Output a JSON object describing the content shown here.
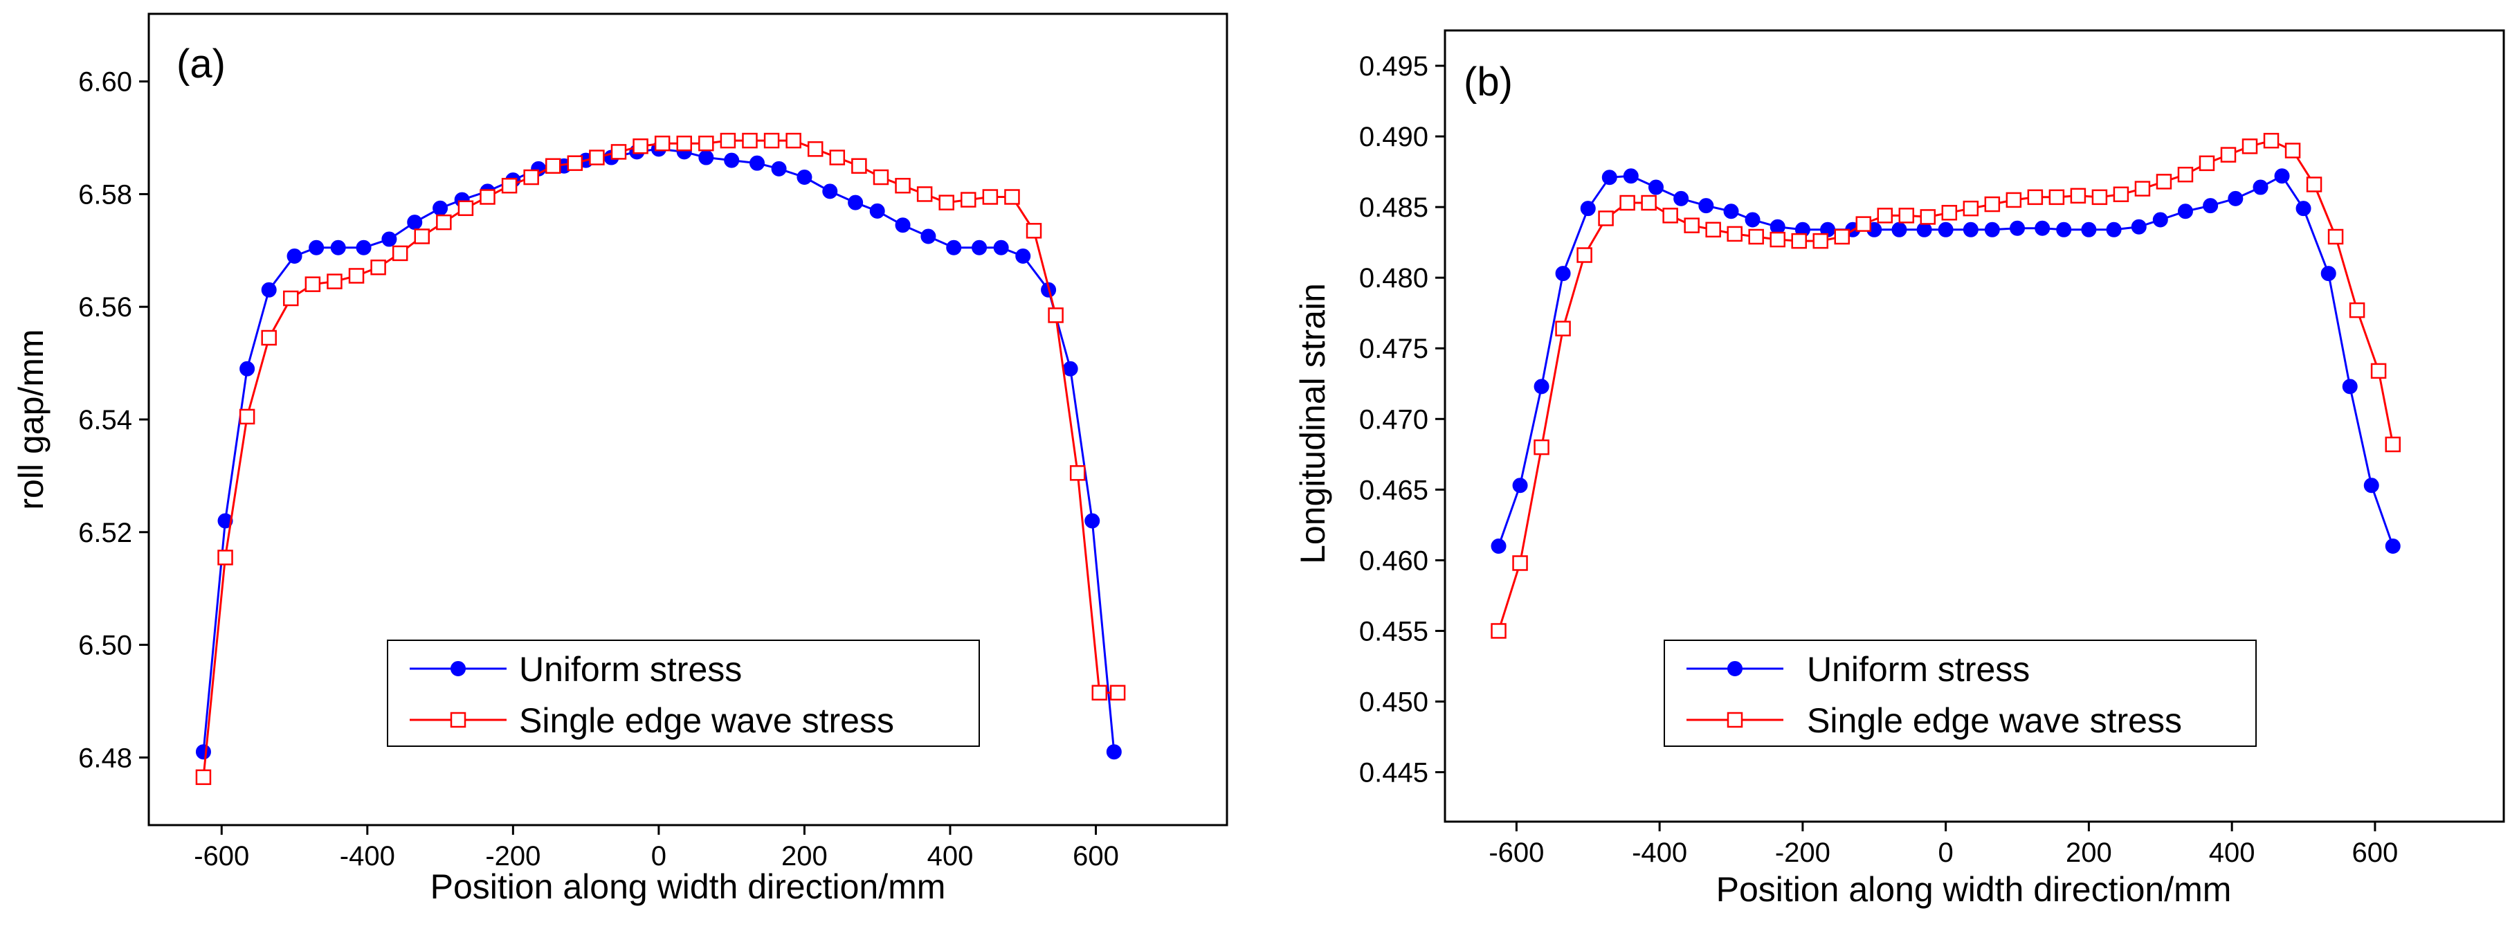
{
  "chart_data": [
    {
      "type": "line",
      "panel_label": "(a)",
      "xlabel": "Position along width direction/mm",
      "ylabel": "roll gap/mm",
      "xlim": [
        -700,
        780
      ],
      "ylim": [
        6.468,
        6.612
      ],
      "xticks": [
        -600,
        -400,
        -200,
        0,
        200,
        400,
        600
      ],
      "xtick_labels": [
        "-600",
        "-400",
        "-200",
        "0",
        "200",
        "400",
        "600"
      ],
      "yticks": [
        6.48,
        6.5,
        6.52,
        6.54,
        6.56,
        6.58,
        6.6
      ],
      "ytick_labels": [
        "6.48",
        "6.50",
        "6.52",
        "6.54",
        "6.56",
        "6.58",
        "6.60"
      ],
      "legend_position": "bottom-center",
      "series": [
        {
          "name": "Uniform stress",
          "color": "#0000ff",
          "marker": "filled-circle",
          "x": [
            -625,
            -595,
            -565,
            -535,
            -500,
            -470,
            -440,
            -405,
            -370,
            -335,
            -300,
            -270,
            -235,
            -200,
            -165,
            -130,
            -100,
            -65,
            -30,
            0,
            35,
            65,
            100,
            135,
            165,
            200,
            235,
            270,
            300,
            335,
            370,
            405,
            440,
            470,
            500,
            535,
            565,
            595,
            625
          ],
          "y": [
            6.481,
            6.522,
            6.549,
            6.563,
            6.569,
            6.5705,
            6.5705,
            6.5705,
            6.572,
            6.575,
            6.5775,
            6.579,
            6.5805,
            6.5825,
            6.5845,
            6.585,
            6.586,
            6.5865,
            6.5875,
            6.588,
            6.5875,
            6.5865,
            6.586,
            6.5855,
            6.5845,
            6.583,
            6.5805,
            6.5785,
            6.577,
            6.5745,
            6.5725,
            6.5705,
            6.5705,
            6.5705,
            6.569,
            6.563,
            6.549,
            6.522,
            6.481
          ]
        },
        {
          "name": "Single edge wave stress",
          "color": "#ff0000",
          "marker": "hollow-square",
          "x": [
            -625,
            -595,
            -565,
            -535,
            -505,
            -475,
            -445,
            -415,
            -385,
            -355,
            -325,
            -295,
            -265,
            -235,
            -205,
            -175,
            -145,
            -115,
            -85,
            -55,
            -25,
            5,
            35,
            65,
            95,
            125,
            155,
            185,
            215,
            245,
            275,
            305,
            335,
            365,
            395,
            425,
            455,
            485,
            515,
            545,
            575,
            605,
            630
          ],
          "y": [
            6.4765,
            6.5155,
            6.5405,
            6.5545,
            6.5615,
            6.564,
            6.5645,
            6.5655,
            6.567,
            6.5695,
            6.5725,
            6.575,
            6.5775,
            6.5795,
            6.5815,
            6.583,
            6.585,
            6.5855,
            6.5865,
            6.5875,
            6.5885,
            6.589,
            6.589,
            6.589,
            6.5895,
            6.5895,
            6.5895,
            6.5895,
            6.588,
            6.5865,
            6.585,
            6.583,
            6.5815,
            6.58,
            6.5785,
            6.579,
            6.5795,
            6.5795,
            6.5735,
            6.5585,
            6.5305,
            6.4915,
            6.4915
          ]
        }
      ]
    },
    {
      "type": "line",
      "panel_label": "(b)",
      "xlabel": "Position along width direction/mm",
      "ylabel": "Longitudinal strain",
      "xlim": [
        -700,
        780
      ],
      "ylim": [
        0.4415,
        0.4975
      ],
      "xticks": [
        -600,
        -400,
        -200,
        0,
        200,
        400,
        600
      ],
      "xtick_labels": [
        "-600",
        "-400",
        "-200",
        "0",
        "200",
        "400",
        "600"
      ],
      "yticks": [
        0.445,
        0.45,
        0.455,
        0.46,
        0.465,
        0.47,
        0.475,
        0.48,
        0.485,
        0.49,
        0.495
      ],
      "ytick_labels": [
        "0.445",
        "0.450",
        "0.455",
        "0.460",
        "0.465",
        "0.470",
        "0.475",
        "0.480",
        "0.485",
        "0.490",
        "0.495"
      ],
      "legend_position": "bottom-center",
      "series": [
        {
          "name": "Uniform stress",
          "color": "#0000ff",
          "marker": "filled-circle",
          "x": [
            -625,
            -595,
            -565,
            -535,
            -500,
            -470,
            -440,
            -405,
            -370,
            -335,
            -300,
            -270,
            -235,
            -200,
            -165,
            -130,
            -100,
            -65,
            -30,
            0,
            35,
            65,
            100,
            135,
            165,
            200,
            235,
            270,
            300,
            335,
            370,
            405,
            440,
            470,
            500,
            535,
            565,
            595,
            625
          ],
          "y": [
            0.461,
            0.4653,
            0.4723,
            0.4803,
            0.4849,
            0.4871,
            0.4872,
            0.4864,
            0.4856,
            0.4851,
            0.4847,
            0.4841,
            0.4836,
            0.4834,
            0.4834,
            0.4834,
            0.4834,
            0.4834,
            0.4834,
            0.4834,
            0.4834,
            0.4834,
            0.4835,
            0.4835,
            0.4834,
            0.4834,
            0.4834,
            0.4836,
            0.4841,
            0.4847,
            0.4851,
            0.4856,
            0.4864,
            0.4872,
            0.4849,
            0.4803,
            0.4723,
            0.4653,
            0.461
          ]
        },
        {
          "name": "Single edge wave stress",
          "color": "#ff0000",
          "marker": "hollow-square",
          "x": [
            -625,
            -595,
            -565,
            -535,
            -505,
            -475,
            -445,
            -415,
            -385,
            -355,
            -325,
            -295,
            -265,
            -235,
            -205,
            -175,
            -145,
            -115,
            -85,
            -55,
            -25,
            5,
            35,
            65,
            95,
            125,
            155,
            185,
            215,
            245,
            275,
            305,
            335,
            365,
            395,
            425,
            455,
            485,
            515,
            545,
            575,
            605,
            625
          ],
          "y": [
            0.455,
            0.4598,
            0.468,
            0.4764,
            0.4816,
            0.4842,
            0.4853,
            0.4853,
            0.4844,
            0.4837,
            0.4834,
            0.4831,
            0.4829,
            0.4827,
            0.4826,
            0.4826,
            0.4829,
            0.4838,
            0.4844,
            0.4844,
            0.4843,
            0.4846,
            0.4849,
            0.4852,
            0.4855,
            0.4857,
            0.4857,
            0.4858,
            0.4857,
            0.4859,
            0.4863,
            0.4868,
            0.4873,
            0.4881,
            0.4887,
            0.4893,
            0.4897,
            0.489,
            0.4866,
            0.4829,
            0.4777,
            0.4734,
            0.4682
          ]
        }
      ]
    }
  ]
}
